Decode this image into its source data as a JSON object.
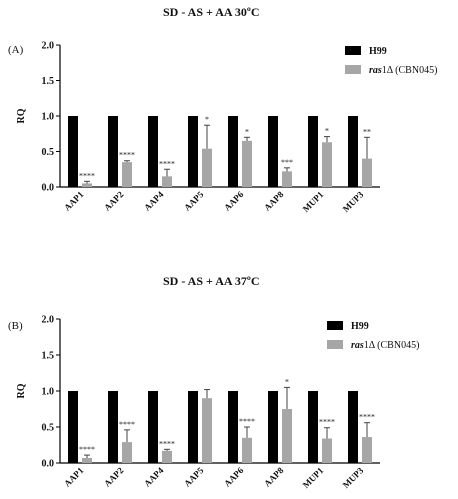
{
  "chart_data": [
    {
      "type": "bar",
      "panel_label": "(A)",
      "title": "SD - AS + AA 30ºC",
      "ylabel": "RQ",
      "ylim": [
        0,
        2.0
      ],
      "yticks": [
        "0.0",
        "0.5",
        "1.0",
        "1.5",
        "2.0"
      ],
      "categories": [
        "AAP1",
        "AAP2",
        "AAP4",
        "AAP5",
        "AAP6",
        "AAP8",
        "MUP1",
        "MUP3"
      ],
      "legend_position": "top-right",
      "series": [
        {
          "name": "H99",
          "color": "#000000",
          "values": [
            1,
            1,
            1,
            1,
            1,
            1,
            1,
            1
          ],
          "errors": [
            0,
            0,
            0,
            0,
            0,
            0,
            0,
            0
          ]
        },
        {
          "name_italic": "ras",
          "name_rest": "1Δ (CBN045)",
          "color": "#a6a6a6",
          "values": [
            0.05,
            0.35,
            0.15,
            0.54,
            0.65,
            0.22,
            0.63,
            0.4
          ],
          "errors": [
            0.03,
            0.02,
            0.1,
            0.33,
            0.05,
            0.05,
            0.08,
            0.3
          ]
        }
      ],
      "annotations": [
        "****",
        "****",
        "****",
        "*",
        "*",
        "***",
        "*",
        "**"
      ]
    },
    {
      "type": "bar",
      "panel_label": "(B)",
      "title": "SD - AS + AA 37ºC",
      "ylabel": "RQ",
      "ylim": [
        0,
        2.0
      ],
      "yticks": [
        "0.0",
        "0.5",
        "1.0",
        "1.5",
        "2.0"
      ],
      "categories": [
        "AAP1",
        "AAP2",
        "AAP4",
        "AAP5",
        "AAP6",
        "AAP8",
        "MUP1",
        "MUP3"
      ],
      "legend_position": "top-right",
      "series": [
        {
          "name": "H99",
          "color": "#000000",
          "values": [
            1,
            1,
            1,
            1,
            1,
            1,
            1,
            1
          ],
          "errors": [
            0,
            0,
            0,
            0,
            0,
            0,
            0,
            0
          ]
        },
        {
          "name_italic": "ras",
          "name_rest": "1Δ (CBN045)",
          "color": "#a6a6a6",
          "values": [
            0.07,
            0.29,
            0.17,
            0.9,
            0.35,
            0.75,
            0.34,
            0.36
          ],
          "errors": [
            0.04,
            0.17,
            0.02,
            0.12,
            0.15,
            0.3,
            0.15,
            0.2
          ]
        }
      ],
      "annotations": [
        "****",
        "****",
        "****",
        "",
        "****",
        "*",
        "****",
        "****"
      ]
    }
  ]
}
